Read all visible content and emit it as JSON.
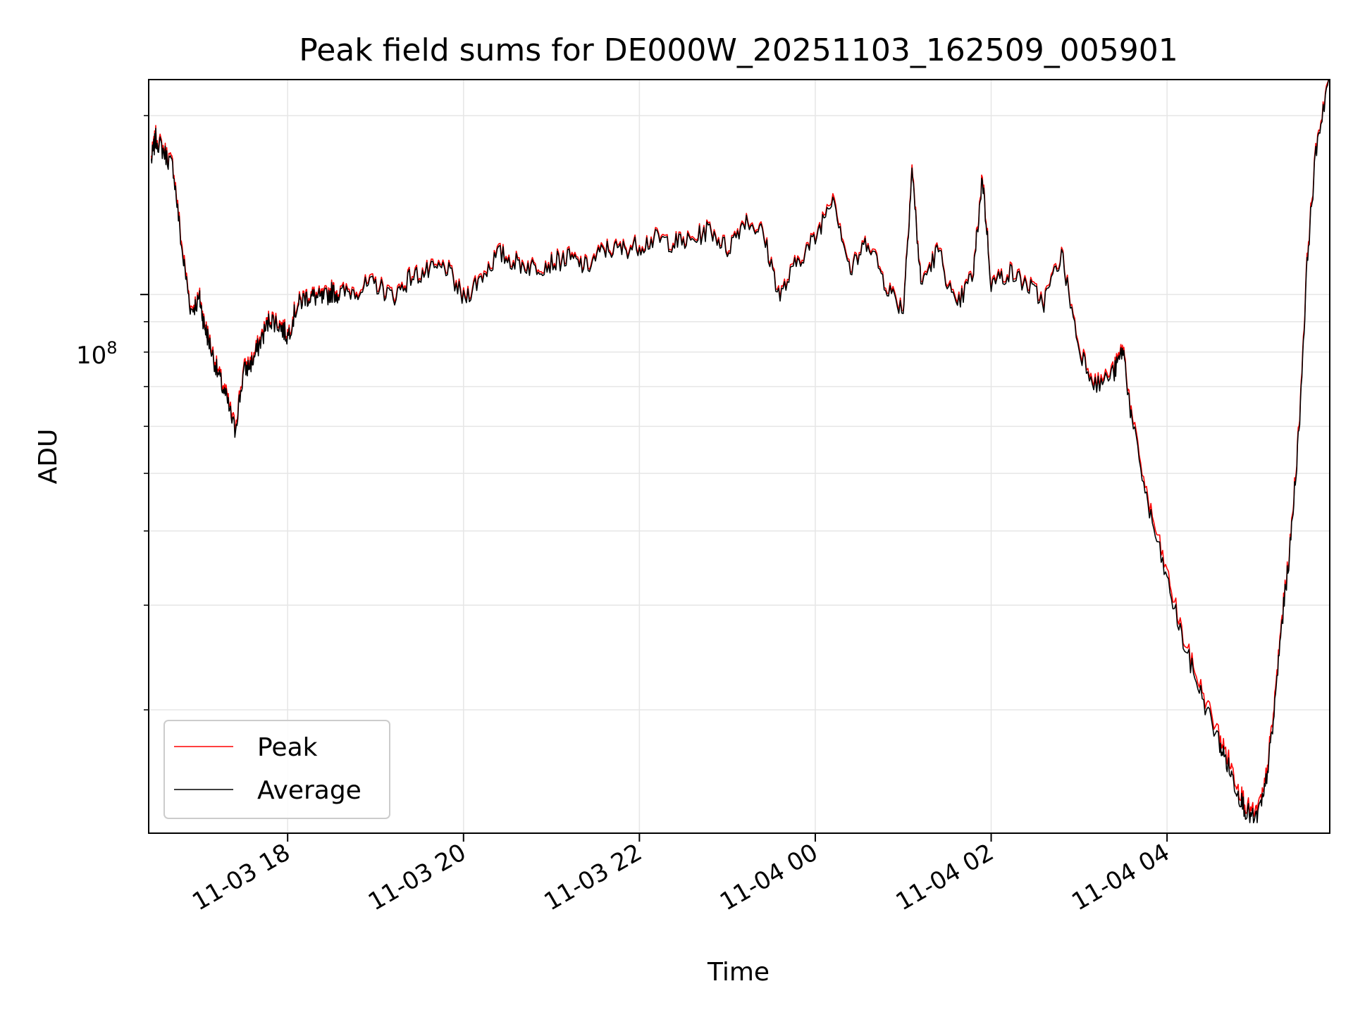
{
  "chart_data": {
    "type": "line",
    "title": "Peak field sums for DE000W_20251103_162509_005901",
    "xlabel": "Time",
    "ylabel": "ADU",
    "yscale": "log",
    "xlim_hours": [
      16.42,
      29.85
    ],
    "ylim": [
      12400000,
      230000000
    ],
    "grid": true,
    "legend_loc": "lower left",
    "x_ticks": [
      {
        "hour": 18,
        "label": "11-03 18"
      },
      {
        "hour": 20,
        "label": "11-03 20"
      },
      {
        "hour": 22,
        "label": "11-03 22"
      },
      {
        "hour": 24,
        "label": "11-04 00"
      },
      {
        "hour": 26,
        "label": "11-04 02"
      },
      {
        "hour": 28,
        "label": "11-04 04"
      }
    ],
    "y_tick_label_base": "10",
    "y_tick_label_exp": "8",
    "y_tick_value": 100000000,
    "series": [
      {
        "name": "Peak",
        "color": "#ff0000",
        "x_hours": [
          16.45,
          16.5,
          16.6,
          16.7,
          16.8,
          16.9,
          17.0,
          17.05,
          17.1,
          17.2,
          17.3,
          17.4,
          17.5,
          17.6,
          17.7,
          17.8,
          17.9,
          18.0,
          18.1,
          18.2,
          18.3,
          18.4,
          18.5,
          18.6,
          18.8,
          19.0,
          19.2,
          19.4,
          19.6,
          19.8,
          20.0,
          20.2,
          20.4,
          20.6,
          20.8,
          21.0,
          21.2,
          21.4,
          21.6,
          21.8,
          22.0,
          22.2,
          22.4,
          22.6,
          22.8,
          23.0,
          23.2,
          23.4,
          23.6,
          23.8,
          24.0,
          24.2,
          24.4,
          24.6,
          24.8,
          25.0,
          25.1,
          25.2,
          25.4,
          25.6,
          25.8,
          25.9,
          26.0,
          26.2,
          26.4,
          26.6,
          26.8,
          27.0,
          27.2,
          27.4,
          27.5,
          27.6,
          27.8,
          28.0,
          28.2,
          28.4,
          28.6,
          28.7,
          28.8,
          28.9,
          29.0,
          29.1,
          29.2,
          29.3,
          29.4,
          29.5,
          29.6,
          29.7,
          29.85
        ],
        "values": [
          170000000,
          185000000,
          175000000,
          165000000,
          120000000,
          95000000,
          99000000,
          90000000,
          85000000,
          75000000,
          68000000,
          60000000,
          75000000,
          78000000,
          85000000,
          92000000,
          90000000,
          86000000,
          96000000,
          100000000,
          100000000,
          99000000,
          102000000,
          101000000,
          103000000,
          105000000,
          100000000,
          108000000,
          110000000,
          112000000,
          99000000,
          108000000,
          118000000,
          114000000,
          112000000,
          114000000,
          116000000,
          112000000,
          120000000,
          120000000,
          122000000,
          125000000,
          123000000,
          124000000,
          130000000,
          120000000,
          135000000,
          128000000,
          100000000,
          115000000,
          125000000,
          150000000,
          110000000,
          125000000,
          105000000,
          95000000,
          165000000,
          105000000,
          120000000,
          95000000,
          110000000,
          160000000,
          105000000,
          110000000,
          105000000,
          98000000,
          118000000,
          82000000,
          71000000,
          75000000,
          82000000,
          62000000,
          44000000,
          34000000,
          26000000,
          21500000,
          18000000,
          16500000,
          15000000,
          13800000,
          13300000,
          14500000,
          19000000,
          28000000,
          38000000,
          60000000,
          120000000,
          180000000,
          240000000
        ]
      },
      {
        "name": "Average",
        "color": "#000000",
        "x_hours": [
          16.45,
          16.5,
          16.6,
          16.7,
          16.8,
          16.9,
          17.0,
          17.05,
          17.1,
          17.2,
          17.3,
          17.4,
          17.5,
          17.6,
          17.7,
          17.8,
          17.9,
          18.0,
          18.1,
          18.2,
          18.3,
          18.4,
          18.5,
          18.6,
          18.8,
          19.0,
          19.2,
          19.4,
          19.6,
          19.8,
          20.0,
          20.2,
          20.4,
          20.6,
          20.8,
          21.0,
          21.2,
          21.4,
          21.6,
          21.8,
          22.0,
          22.2,
          22.4,
          22.6,
          22.8,
          23.0,
          23.2,
          23.4,
          23.6,
          23.8,
          24.0,
          24.2,
          24.4,
          24.6,
          24.8,
          25.0,
          25.1,
          25.2,
          25.4,
          25.6,
          25.8,
          25.9,
          26.0,
          26.2,
          26.4,
          26.6,
          26.8,
          27.0,
          27.2,
          27.4,
          27.5,
          27.6,
          27.8,
          28.0,
          28.2,
          28.4,
          28.6,
          28.7,
          28.8,
          28.9,
          29.0,
          29.1,
          29.2,
          29.3,
          29.4,
          29.5,
          29.6,
          29.7,
          29.85
        ],
        "values": [
          168000000,
          183000000,
          173000000,
          163000000,
          118000000,
          94000000,
          98000000,
          89000000,
          84000000,
          74000000,
          67000000,
          59000000,
          74000000,
          77000000,
          84000000,
          91000000,
          89000000,
          85000000,
          95000000,
          99000000,
          99000000,
          98000000,
          101000000,
          100000000,
          102000000,
          104000000,
          99000000,
          107000000,
          109000000,
          111000000,
          98000000,
          107000000,
          117000000,
          113000000,
          111000000,
          113000000,
          115000000,
          111000000,
          119000000,
          119000000,
          121000000,
          124000000,
          122000000,
          123000000,
          129000000,
          119000000,
          134000000,
          127000000,
          99000000,
          114000000,
          124000000,
          148000000,
          109000000,
          124000000,
          104000000,
          94000000,
          163000000,
          104000000,
          119000000,
          94000000,
          109000000,
          158000000,
          104000000,
          109000000,
          104000000,
          97000000,
          117000000,
          81000000,
          70000000,
          74000000,
          81000000,
          61000000,
          43000000,
          33000000,
          25500000,
          21000000,
          17500000,
          16000000,
          14600000,
          13500000,
          13000000,
          14200000,
          18500000,
          27500000,
          37500000,
          59000000,
          118000000,
          178000000,
          238000000
        ]
      }
    ]
  }
}
